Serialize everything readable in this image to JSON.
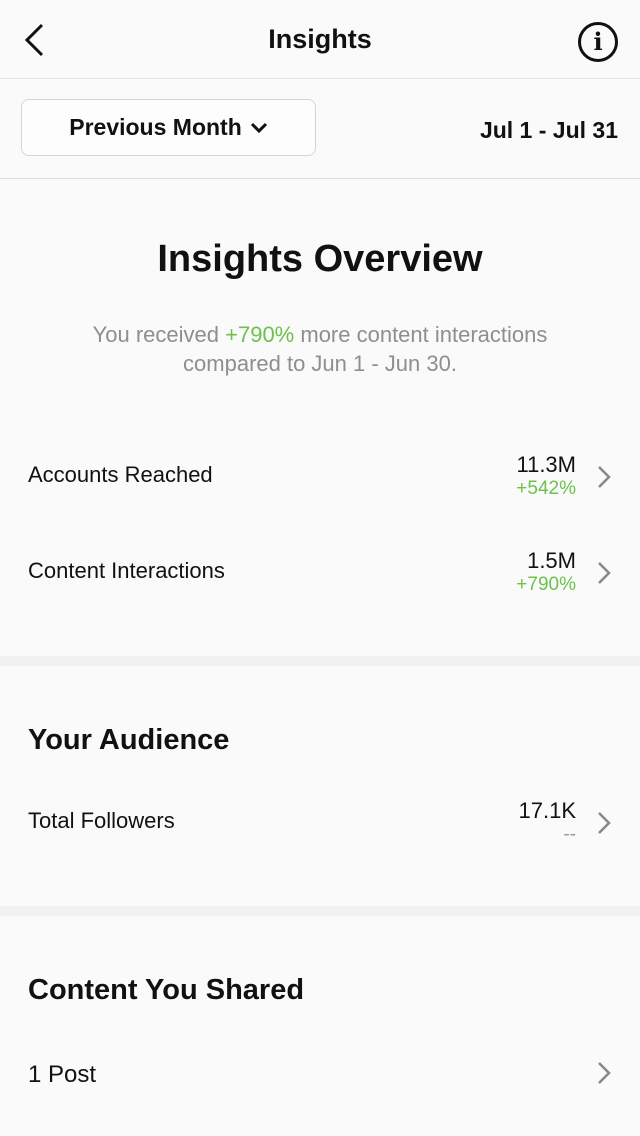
{
  "header": {
    "title": "Insights"
  },
  "filter": {
    "period": "Previous Month",
    "range": "Jul 1 - Jul 31"
  },
  "overview": {
    "title": "Insights Overview",
    "sub_pre": "You received ",
    "sub_highlight": "+790%",
    "sub_post": " more content interactions compared to Jun 1 - Jun 30.",
    "metrics": [
      {
        "label": "Accounts Reached",
        "value": "11.3M",
        "change": "+542%"
      },
      {
        "label": "Content Interactions",
        "value": "1.5M",
        "change": "+790%"
      }
    ]
  },
  "audience": {
    "title": "Your Audience",
    "metrics": [
      {
        "label": "Total Followers",
        "value": "17.1K",
        "change": "--"
      }
    ]
  },
  "content": {
    "title": "Content You Shared",
    "items": [
      {
        "label": "1 Post"
      }
    ]
  },
  "colors": {
    "positive": "#6cc24a",
    "muted": "#8e8e8e"
  }
}
